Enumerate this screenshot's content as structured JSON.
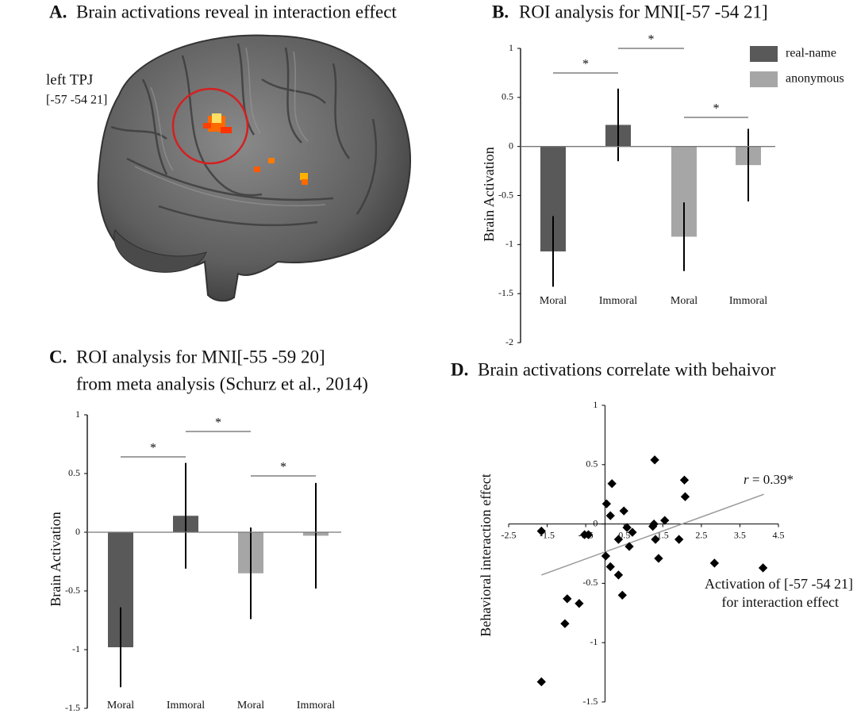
{
  "panel_a": {
    "panel_label": "A.",
    "title": "Brain activations reveal in interaction effect",
    "region_label": "left TPJ",
    "region_coordinates": "[-57 -54 21]"
  },
  "chart_data": [
    {
      "type": "bar",
      "panel_label": "B.",
      "title": "ROI analysis for MNI[-57 -54 21]",
      "ylabel": "Brain Activation",
      "categories": [
        "Moral",
        "Immoral",
        "Moral",
        "Immoral"
      ],
      "series": [
        {
          "name": "real-name",
          "color": "#595959",
          "values": [
            -1.07,
            0.22,
            null,
            null
          ],
          "errors": [
            0.36,
            0.37,
            null,
            null
          ]
        },
        {
          "name": "anonymous",
          "color": "#a6a6a6",
          "values": [
            null,
            null,
            -0.92,
            -0.19
          ],
          "errors": [
            null,
            null,
            0.35,
            0.37
          ]
        }
      ],
      "ylim": [
        -2,
        1
      ],
      "yticks": [
        -2,
        -1.5,
        -1,
        -0.5,
        0,
        0.5,
        1
      ],
      "legend": "upper right",
      "significance": [
        {
          "from": 0,
          "to": 1,
          "label": "*"
        },
        {
          "from": 1,
          "to": 2,
          "label": "*"
        },
        {
          "from": 2,
          "to": 3,
          "label": "*"
        }
      ]
    },
    {
      "type": "bar",
      "panel_label": "C.",
      "title": "ROI analysis for MNI[-55 -59 20]",
      "subtitle": "from meta analysis (Schurz et al., 2014)",
      "ylabel": "Brain Activation",
      "categories": [
        "Moral",
        "Immoral",
        "Moral",
        "Immoral"
      ],
      "series": [
        {
          "color": "#595959",
          "values": [
            -0.98,
            0.14,
            null,
            null
          ],
          "errors": [
            0.34,
            0.45,
            null,
            null
          ]
        },
        {
          "color": "#a6a6a6",
          "values": [
            null,
            null,
            -0.35,
            -0.03
          ],
          "errors": [
            null,
            null,
            0.39,
            0.45
          ]
        }
      ],
      "ylim": [
        -1.5,
        1
      ],
      "yticks": [
        -1.5,
        -1,
        -0.5,
        0,
        0.5,
        1
      ],
      "significance": [
        {
          "from": 0,
          "to": 1,
          "label": "*"
        },
        {
          "from": 1,
          "to": 2,
          "label": "*"
        },
        {
          "from": 2,
          "to": 3,
          "label": "*"
        }
      ]
    },
    {
      "type": "scatter",
      "panel_label": "D.",
      "title": "Brain activations correlate with behaivor",
      "xlabel": [
        "Activation of [-57 -54 21]",
        "for interaction effect"
      ],
      "ylabel": "Behavioral interaction effect",
      "annotation": {
        "symbol": "r",
        "text": " = 0.39*"
      },
      "color": "#000000",
      "x": [
        -1.65,
        -1.65,
        -0.98,
        -1.04,
        -0.67,
        -0.53,
        -0.43,
        0.04,
        0.14,
        0.18,
        0.02,
        0.14,
        0.35,
        0.35,
        0.45,
        0.49,
        0.57,
        0.63,
        0.71,
        1.29,
        1.24,
        1.27,
        1.31,
        1.39,
        1.55,
        1.92,
        2.06,
        2.08,
        2.84,
        4.1
      ],
      "y": [
        -0.06,
        -1.33,
        -0.63,
        -0.84,
        -0.67,
        -0.09,
        -0.09,
        0.17,
        0.07,
        0.34,
        -0.27,
        -0.36,
        -0.13,
        -0.43,
        -0.6,
        0.11,
        -0.03,
        -0.19,
        -0.07,
        0.54,
        -0.02,
        0,
        -0.13,
        -0.29,
        0.03,
        -0.13,
        0.37,
        0.23,
        -0.33,
        -0.37
      ],
      "trend": {
        "color": "#999999",
        "x": [
          -1.65,
          4.12
        ],
        "y": [
          -0.43,
          0.25
        ]
      },
      "xlim": [
        -2.5,
        4.5
      ],
      "xticks": [
        -2.5,
        -1.5,
        -0.5,
        0.5,
        1.5,
        2.5,
        3.5,
        4.5
      ],
      "ylim": [
        -1.5,
        1
      ],
      "yticks": [
        -1.5,
        -1,
        -0.5,
        0,
        0.5,
        1
      ]
    }
  ]
}
